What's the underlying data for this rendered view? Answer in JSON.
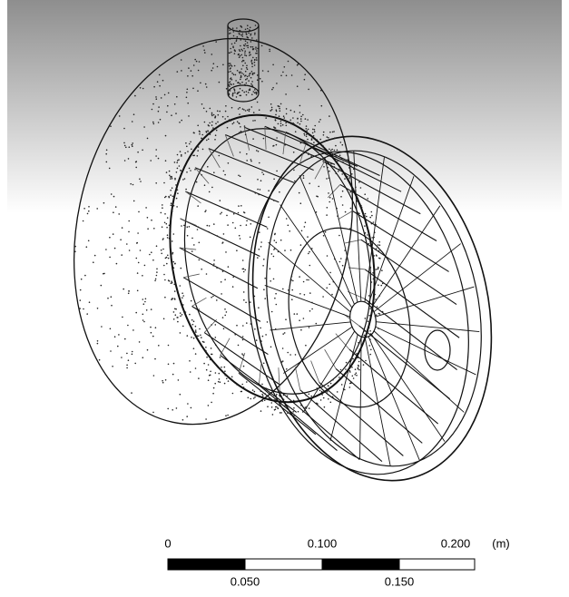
{
  "scale_bar": {
    "top_labels": [
      "0",
      "0.100",
      "0.200"
    ],
    "unit": "(m)",
    "bottom_labels": [
      "0.050",
      "0.150"
    ]
  }
}
